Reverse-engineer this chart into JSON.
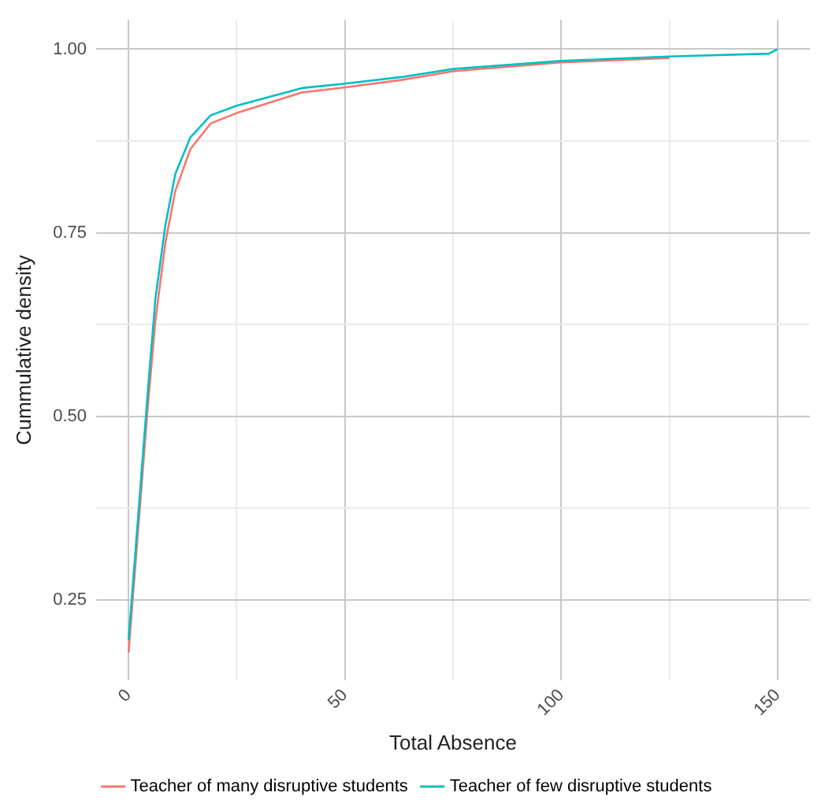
{
  "chart_data": {
    "type": "line",
    "xlabel": "Total Absence",
    "ylabel": "Cummulative density",
    "xlim": [
      -7.5,
      157.5
    ],
    "ylim": [
      0.14,
      1.04
    ],
    "xticks": [
      0,
      {
        "value": 25,
        "label": null
      },
      50,
      {
        "value": 75,
        "label": null
      },
      100,
      {
        "value": 125,
        "label": null
      },
      150
    ],
    "yticks": [
      {
        "value": 0.25,
        "label": "0.25"
      },
      {
        "value": 0.375,
        "label": null
      },
      {
        "value": 0.5,
        "label": "0.50"
      },
      {
        "value": 0.625,
        "label": null
      },
      {
        "value": 0.75,
        "label": "0.75"
      },
      {
        "value": 0.875,
        "label": null
      },
      {
        "value": 1,
        "label": "1.00"
      }
    ],
    "grid": true,
    "legend": "bottom",
    "marker": "none",
    "line_style": "solid",
    "series": [
      {
        "name": "Teacher of many disruptive students",
        "color": "#f8766d",
        "x": [
          0,
          4.4,
          6.2,
          8.5,
          10.8,
          14.3,
          19,
          25,
          40,
          50,
          63,
          75,
          100,
          125
        ],
        "values": [
          0.178,
          0.51,
          0.63,
          0.736,
          0.807,
          0.864,
          0.899,
          0.913,
          0.941,
          0.948,
          0.958,
          0.97,
          0.982,
          0.988
        ]
      },
      {
        "name": "Teacher of few disruptive students",
        "color": "#00bfc4",
        "x": [
          0,
          4.4,
          6.2,
          8.5,
          10.8,
          14.3,
          19,
          25,
          40,
          50,
          63,
          75,
          100,
          125,
          148,
          150
        ],
        "values": [
          0.195,
          0.53,
          0.66,
          0.76,
          0.83,
          0.88,
          0.91,
          0.923,
          0.947,
          0.953,
          0.962,
          0.973,
          0.984,
          0.99,
          0.994,
          1.0
        ]
      }
    ]
  }
}
